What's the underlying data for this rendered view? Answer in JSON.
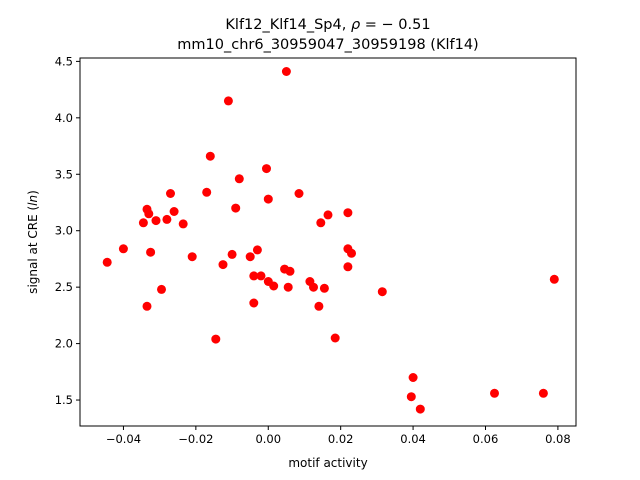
{
  "chart_data": {
    "type": "scatter",
    "title_parts": [
      "Klf12_Klf14_Sp4, ",
      "ρ",
      " = − 0.51"
    ],
    "subtitle": "mm10_chr6_30959047_30959198 (Klf14)",
    "xlabel": "motif activity",
    "ylabel_parts": [
      "signal at CRE (",
      "ln",
      ")"
    ],
    "xlim": [
      -0.052,
      0.085
    ],
    "ylim": [
      1.27,
      4.53
    ],
    "xticks": [
      -0.04,
      -0.02,
      0.0,
      0.02,
      0.04,
      0.06,
      0.08
    ],
    "xtick_labels": [
      "−0.04",
      "−0.02",
      "0.00",
      "0.02",
      "0.04",
      "0.06",
      "0.08"
    ],
    "yticks": [
      1.5,
      2.0,
      2.5,
      3.0,
      3.5,
      4.0,
      4.5
    ],
    "ytick_labels": [
      "1.5",
      "2.0",
      "2.5",
      "3.0",
      "3.5",
      "4.0",
      "4.5"
    ],
    "marker_color": "#ff0000",
    "grid": false,
    "points": [
      {
        "x": -0.0445,
        "y": 2.72
      },
      {
        "x": -0.04,
        "y": 2.84
      },
      {
        "x": -0.0345,
        "y": 3.07
      },
      {
        "x": -0.0335,
        "y": 3.19
      },
      {
        "x": -0.033,
        "y": 3.15
      },
      {
        "x": -0.0325,
        "y": 2.81
      },
      {
        "x": -0.0335,
        "y": 2.33
      },
      {
        "x": -0.031,
        "y": 3.09
      },
      {
        "x": -0.0295,
        "y": 2.48
      },
      {
        "x": -0.028,
        "y": 3.1
      },
      {
        "x": -0.027,
        "y": 3.33
      },
      {
        "x": -0.026,
        "y": 3.17
      },
      {
        "x": -0.0235,
        "y": 3.06
      },
      {
        "x": -0.021,
        "y": 2.77
      },
      {
        "x": -0.017,
        "y": 3.34
      },
      {
        "x": -0.016,
        "y": 3.66
      },
      {
        "x": -0.0145,
        "y": 2.04
      },
      {
        "x": -0.0125,
        "y": 2.7
      },
      {
        "x": -0.011,
        "y": 4.15
      },
      {
        "x": -0.01,
        "y": 2.79
      },
      {
        "x": -0.009,
        "y": 3.2
      },
      {
        "x": -0.008,
        "y": 3.46
      },
      {
        "x": -0.005,
        "y": 2.77
      },
      {
        "x": -0.004,
        "y": 2.6
      },
      {
        "x": -0.004,
        "y": 2.36
      },
      {
        "x": -0.003,
        "y": 2.83
      },
      {
        "x": -0.002,
        "y": 2.6
      },
      {
        "x": -0.0005,
        "y": 3.55
      },
      {
        "x": 0.0,
        "y": 3.28
      },
      {
        "x": 0.0,
        "y": 2.55
      },
      {
        "x": 0.0015,
        "y": 2.51
      },
      {
        "x": 0.0045,
        "y": 2.66
      },
      {
        "x": 0.005,
        "y": 4.41
      },
      {
        "x": 0.0055,
        "y": 2.5
      },
      {
        "x": 0.006,
        "y": 2.64
      },
      {
        "x": 0.0085,
        "y": 3.33
      },
      {
        "x": 0.0115,
        "y": 2.55
      },
      {
        "x": 0.0125,
        "y": 2.5
      },
      {
        "x": 0.014,
        "y": 2.33
      },
      {
        "x": 0.0145,
        "y": 3.07
      },
      {
        "x": 0.0155,
        "y": 2.49
      },
      {
        "x": 0.0165,
        "y": 3.14
      },
      {
        "x": 0.0185,
        "y": 2.05
      },
      {
        "x": 0.022,
        "y": 3.16
      },
      {
        "x": 0.022,
        "y": 2.84
      },
      {
        "x": 0.022,
        "y": 2.68
      },
      {
        "x": 0.023,
        "y": 2.8
      },
      {
        "x": 0.0315,
        "y": 2.46
      },
      {
        "x": 0.0395,
        "y": 1.53
      },
      {
        "x": 0.04,
        "y": 1.7
      },
      {
        "x": 0.042,
        "y": 1.42
      },
      {
        "x": 0.0625,
        "y": 1.56
      },
      {
        "x": 0.076,
        "y": 1.56
      },
      {
        "x": 0.079,
        "y": 2.57
      }
    ]
  }
}
